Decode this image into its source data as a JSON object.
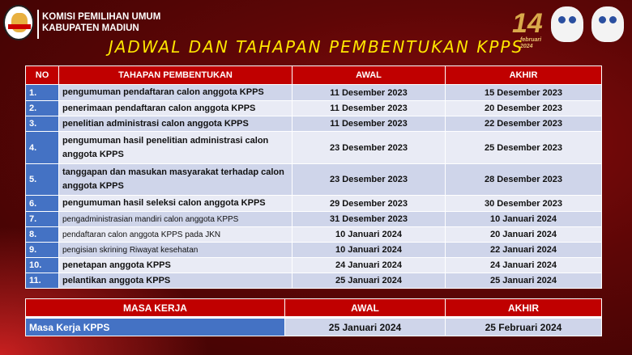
{
  "header": {
    "org_line1": "KOMISI PEMILIHAN UMUM",
    "org_line2": "KABUPATEN MADIUN",
    "title": "JADWAL DAN TAHAPAN PEMBENTUKAN KPPS",
    "badge_number": "14",
    "badge_text": "februari 2024"
  },
  "colors": {
    "header_red": "#c00000",
    "number_blue": "#4472c4",
    "row_dark": "#cfd5ea",
    "row_light": "#e9ebf5",
    "title_yellow": "#ffe600"
  },
  "schedule": {
    "headers": [
      "NO",
      "TAHAPAN PEMBENTUKAN",
      "AWAL",
      "AKHIR"
    ],
    "rows": [
      {
        "no": "1.",
        "tahapan": "pengumuman pendaftaran calon anggota KPPS",
        "awal": "11 Desember 2023",
        "akhir": "15 Desember 2023"
      },
      {
        "no": "2.",
        "tahapan": "penerimaan pendaftaran calon anggota KPPS",
        "awal": "11 Desember 2023",
        "akhir": "20 Desember 2023"
      },
      {
        "no": "3.",
        "tahapan": "penelitian administrasi calon anggota KPPS",
        "awal": "11 Desember 2023",
        "akhir": "22 Desember 2023"
      },
      {
        "no": "4.",
        "tahapan": "pengumuman hasil penelitian administrasi calon anggota KPPS",
        "awal": "23 Desember 2023",
        "akhir": "25 Desember 2023"
      },
      {
        "no": "5.",
        "tahapan": "tanggapan dan masukan masyarakat terhadap calon anggota KPPS",
        "awal": "23 Desember 2023",
        "akhir": "28 Desember 2023"
      },
      {
        "no": "6.",
        "tahapan": "pengumuman hasil seleksi calon anggota KPPS",
        "awal": "29 Desember 2023",
        "akhir": "30 Desember 2023"
      },
      {
        "no": "7.",
        "tahapan": "pengadministrasian mandiri calon anggota KPPS",
        "awal": "31 Desember 2023",
        "akhir": "10 Januari 2024"
      },
      {
        "no": "8.",
        "tahapan": "pendaftaran calon anggota KPPS pada JKN",
        "awal": "10 Januari 2024",
        "akhir": "20 Januari 2024"
      },
      {
        "no": "9.",
        "tahapan": "pengisian skrining Riwayat kesehatan",
        "awal": "10 Januari 2024",
        "akhir": "22 Januari 2024"
      },
      {
        "no": "10.",
        "tahapan": "penetapan anggota KPPS",
        "awal": "24 Januari 2024",
        "akhir": "24 Januari 2024"
      },
      {
        "no": "11.",
        "tahapan": "pelantikan anggota KPPS",
        "awal": "25 Januari 2024",
        "akhir": "25 Januari 2024"
      }
    ]
  },
  "masa_kerja": {
    "headers": [
      "MASA KERJA",
      "AWAL",
      "AKHIR"
    ],
    "row": {
      "label": "Masa Kerja KPPS",
      "awal": "25 Januari 2024",
      "akhir": "25 Februari 2024"
    }
  }
}
